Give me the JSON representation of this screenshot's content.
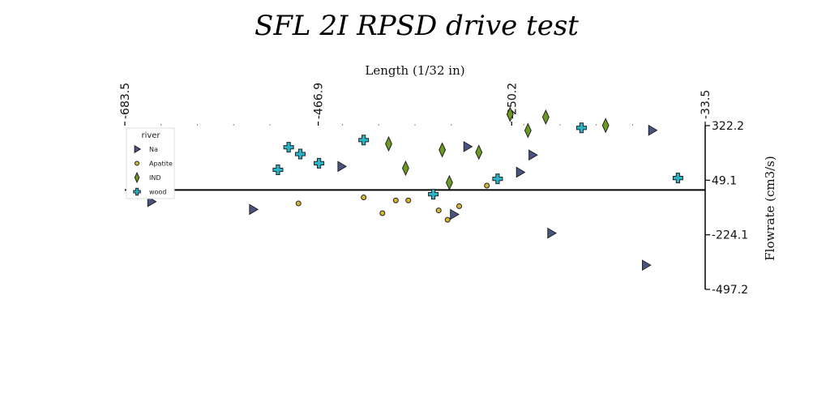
{
  "chart_data": {
    "type": "scatter",
    "title": "SFL 2I RPSD drive test",
    "xlabel": "Length (1/32 in)",
    "ylabel": "Flowrate (cm3/s)",
    "xlim": [
      -683.5,
      -33.5
    ],
    "ylim": [
      -497.2,
      322.2
    ],
    "x_ticks": [
      "-683.5",
      "-466.9",
      "-250.2",
      "-33.5"
    ],
    "y_ticks": [
      "322.2",
      "49.1",
      "-224.1",
      "-497.2"
    ],
    "baseline_y": 0,
    "legend": {
      "title": "river",
      "position": "top-left"
    },
    "series": [
      {
        "name": "Na",
        "marker": "triangle-right",
        "color": "#4a5480",
        "points": [
          [
            -654,
            -58
          ],
          [
            -540,
            -97
          ],
          [
            -441,
            118
          ],
          [
            -300,
            217
          ],
          [
            -241,
            89
          ],
          [
            -227,
            175
          ],
          [
            -315,
            -122
          ],
          [
            -206,
            -216
          ],
          [
            -100,
            -376
          ],
          [
            -93,
            299
          ]
        ]
      },
      {
        "name": "Apatite",
        "marker": "circle",
        "color": "#d4b534",
        "points": [
          [
            -489,
            -67
          ],
          [
            -416,
            -37
          ],
          [
            -395,
            -116
          ],
          [
            -380,
            -52
          ],
          [
            -366,
            -52
          ],
          [
            -332,
            -102
          ],
          [
            -322,
            -149
          ],
          [
            -309,
            -81
          ],
          [
            -278,
            22
          ]
        ]
      },
      {
        "name": "IND",
        "marker": "diamond",
        "color": "#6b9a22",
        "points": [
          [
            -388,
            231
          ],
          [
            -369,
            109
          ],
          [
            -328,
            201
          ],
          [
            -320,
            37
          ],
          [
            -287,
            189
          ],
          [
            -252,
            379
          ],
          [
            -232,
            298
          ],
          [
            -212,
            365
          ],
          [
            -145,
            323
          ]
        ]
      },
      {
        "name": "wood",
        "marker": "plus",
        "color": "#2ab4c8",
        "points": [
          [
            -512,
            101
          ],
          [
            -500,
            214
          ],
          [
            -487,
            180
          ],
          [
            -466,
            134
          ],
          [
            -416,
            250
          ],
          [
            -338,
            -21
          ],
          [
            -266,
            56
          ],
          [
            -172,
            311
          ],
          [
            -64,
            60
          ]
        ]
      }
    ]
  }
}
